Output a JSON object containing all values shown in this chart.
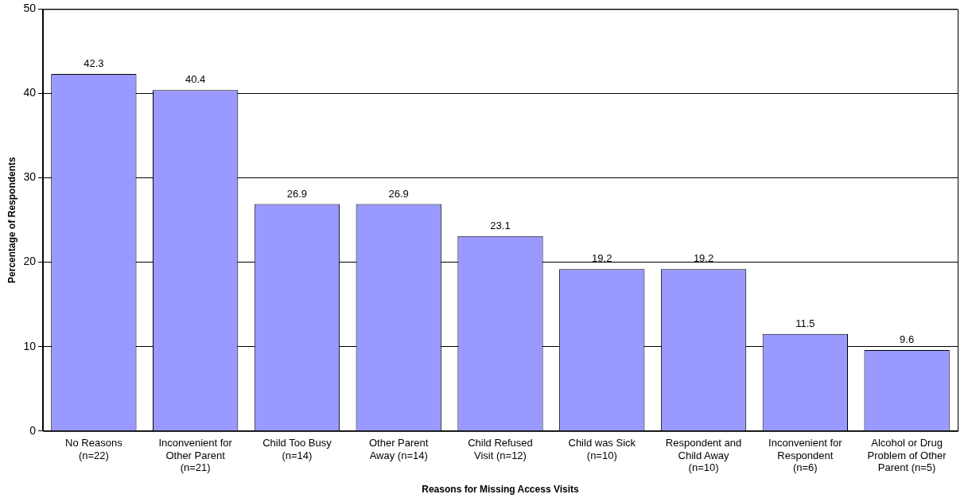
{
  "chart_data": {
    "type": "bar",
    "xlabel": "Reasons for Missing Access Visits",
    "ylabel": "Percentage of Respondents",
    "categories": [
      "No Reasons\n(n=22)",
      "Inconvenient for\nOther Parent\n(n=21)",
      "Child Too Busy\n(n=14)",
      "Other Parent\nAway (n=14)",
      "Child Refused\nVisit (n=12)",
      "Child was Sick\n(n=10)",
      "Respondent and\nChild Away\n(n=10)",
      "Inconvenient for\nRespondent\n(n=6)",
      "Alcohol or Drug\nProblem of Other\nParent (n=5)"
    ],
    "values": [
      42.3,
      40.4,
      26.9,
      26.9,
      23.1,
      19.2,
      19.2,
      11.5,
      9.6
    ],
    "color": "#9999ff",
    "ylim": [
      0,
      50
    ],
    "yticks": [
      0,
      10,
      20,
      30,
      40,
      50
    ],
    "grid": "y",
    "data_labels": true
  }
}
